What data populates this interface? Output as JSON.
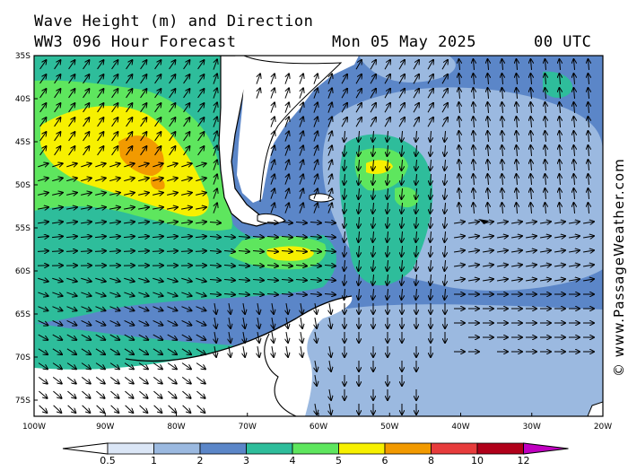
{
  "header": {
    "title": "Wave Height (m) and Direction",
    "model": "WW3 096 Hour Forecast",
    "date": "Mon 05 May 2025",
    "time": "00 UTC"
  },
  "credit": "© www.PassageWeather.com",
  "map": {
    "lat_labels": [
      "35S",
      "40S",
      "45S",
      "50S",
      "55S",
      "60S",
      "65S",
      "70S",
      "75S"
    ],
    "lon_labels": [
      "100W",
      "90W",
      "80W",
      "70W",
      "60W",
      "50W",
      "40W",
      "30W",
      "20W"
    ],
    "ocean_color": "#5b86c8",
    "land_color": "#ffffff"
  },
  "legend": {
    "ticks": [
      "0.5",
      "1",
      "2",
      "3",
      "4",
      "5",
      "6",
      "8",
      "10",
      "12"
    ],
    "colors": [
      "#ffffff",
      "#dbe6f6",
      "#9bb9e0",
      "#5b86c8",
      "#2ebd9b",
      "#5ee65e",
      "#f7f000",
      "#f29a00",
      "#e73c3c",
      "#b0001a",
      "#c000c0"
    ]
  }
}
